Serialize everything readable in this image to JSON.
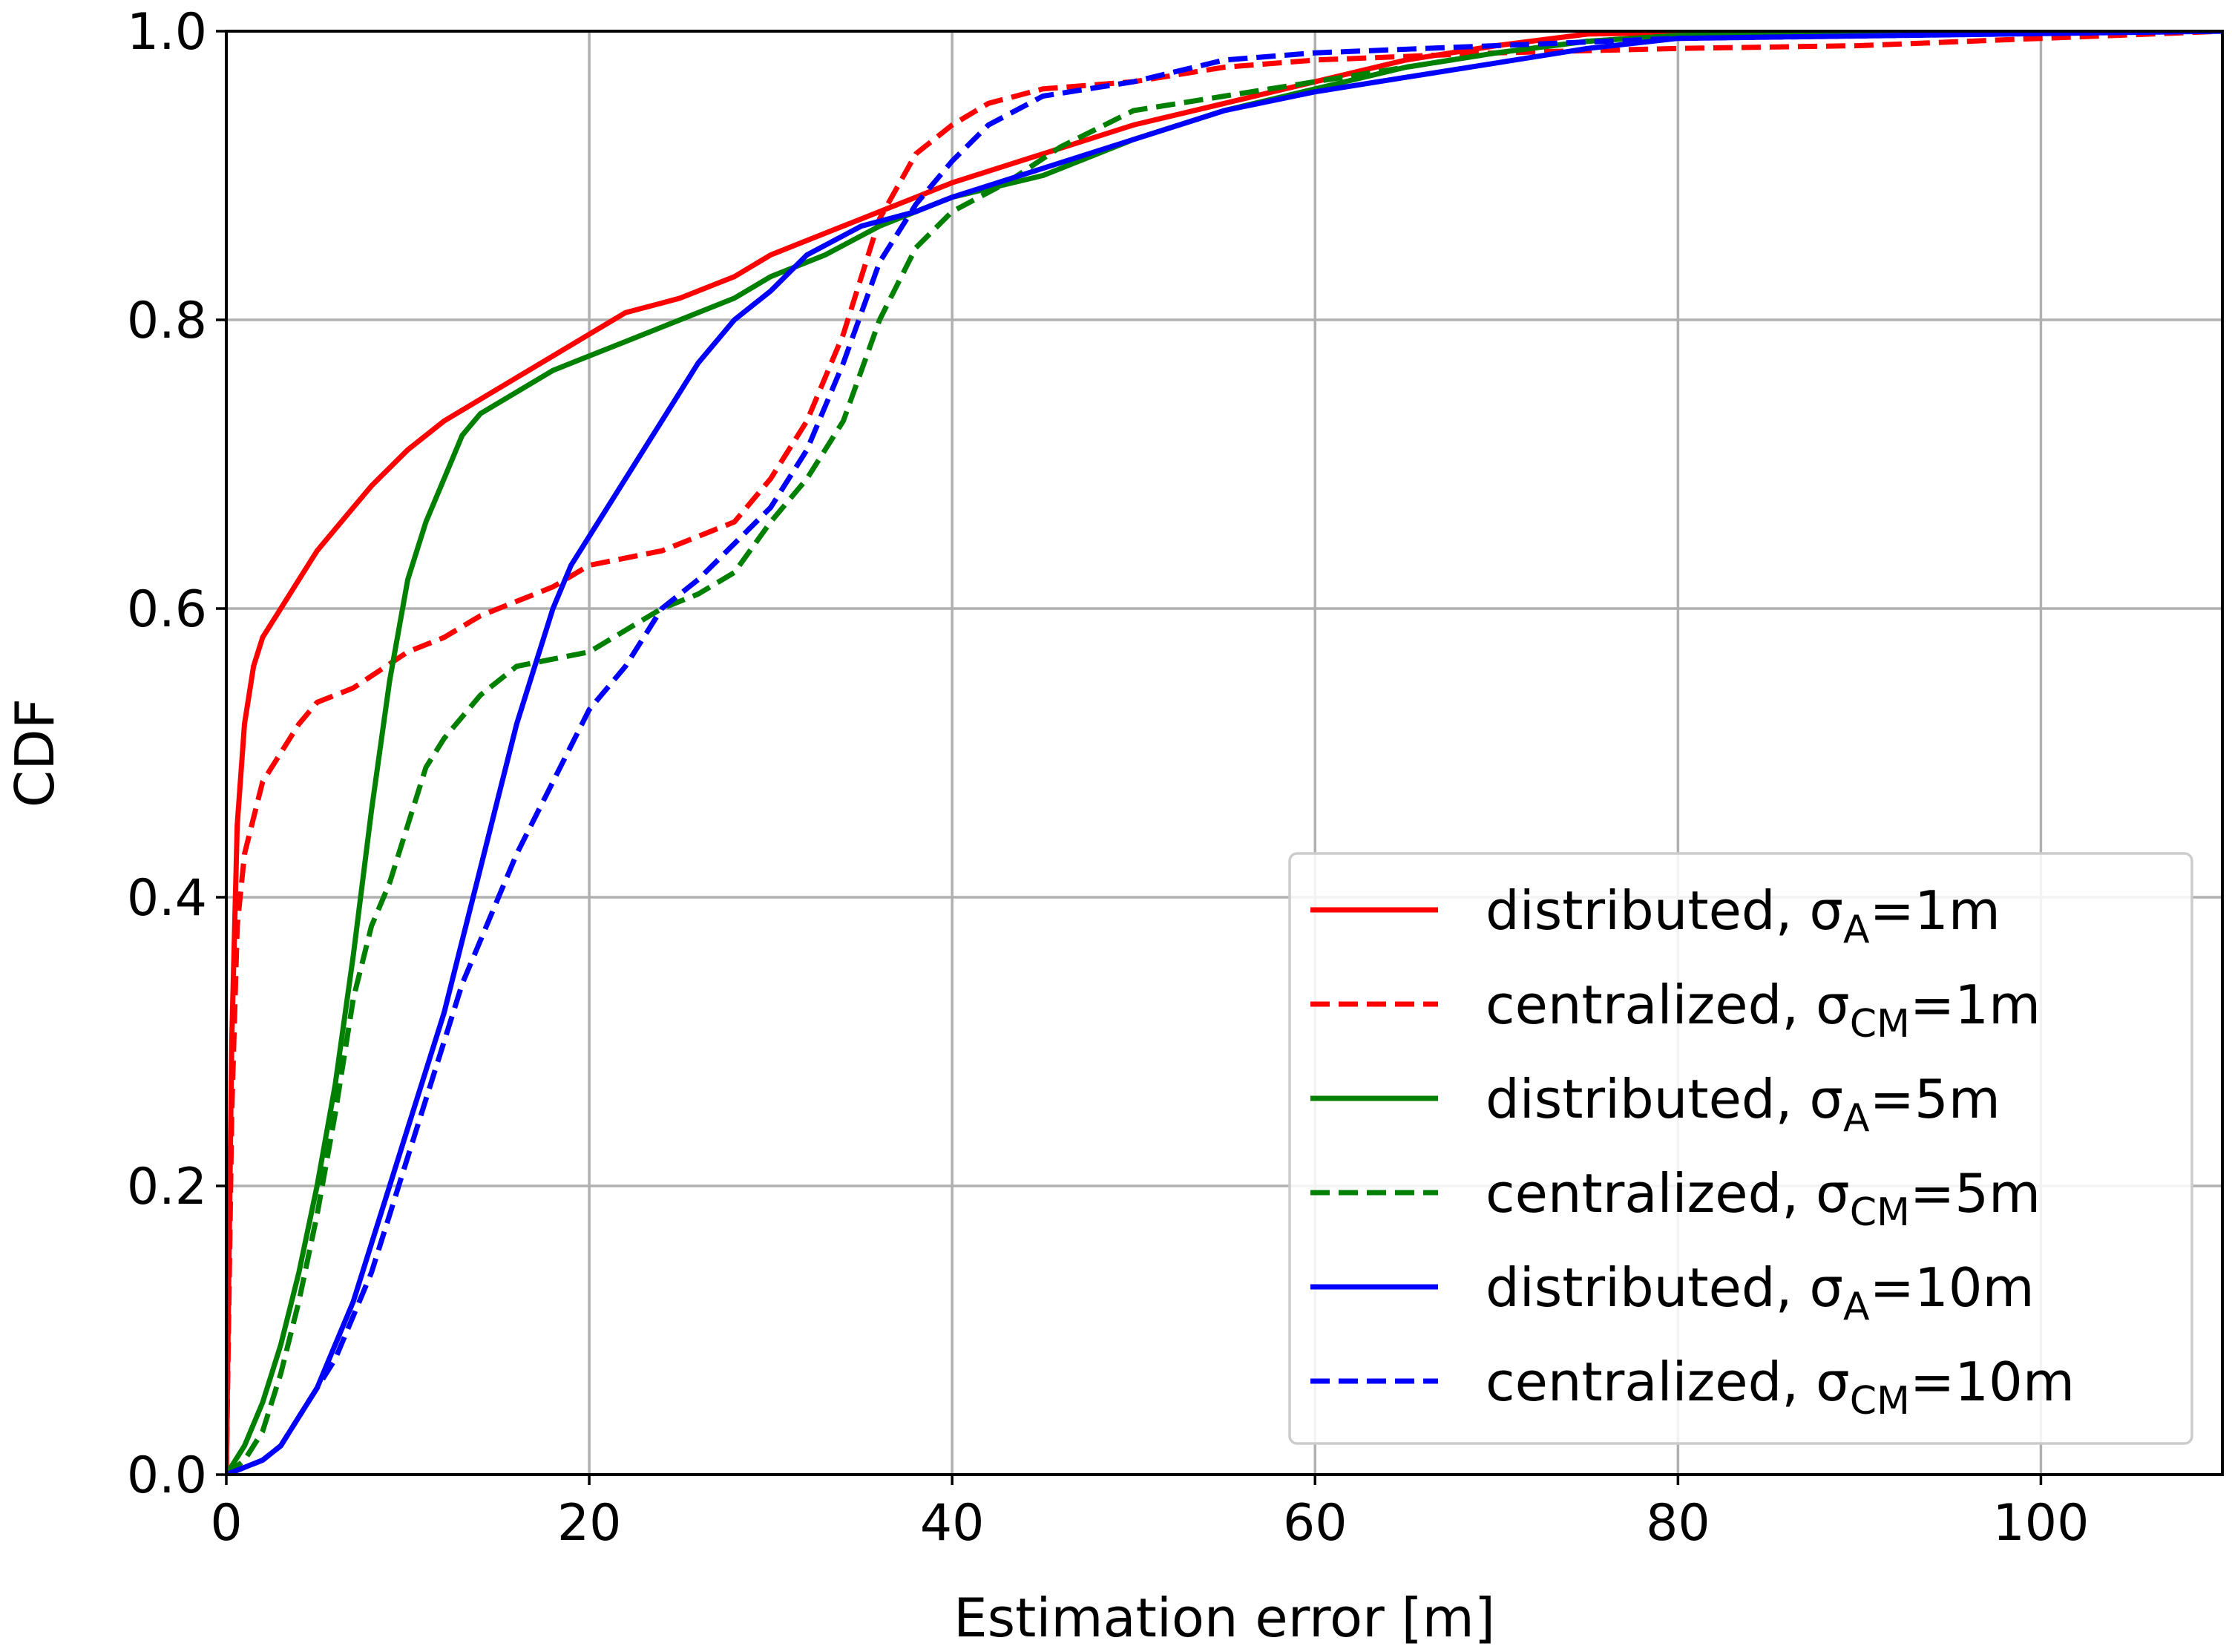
{
  "chart_data": {
    "type": "line",
    "title": "",
    "xlabel": "Estimation error [m]",
    "ylabel": "CDF",
    "xlim": [
      0,
      110
    ],
    "ylim": [
      0,
      1.0
    ],
    "xticks": [
      0,
      20,
      40,
      60,
      80,
      100
    ],
    "yticks": [
      0.0,
      0.2,
      0.4,
      0.6,
      0.8,
      1.0
    ],
    "xtick_labels": [
      "0",
      "20",
      "40",
      "60",
      "80",
      "100"
    ],
    "ytick_labels": [
      "0.0",
      "0.2",
      "0.4",
      "0.6",
      "0.8",
      "1.0"
    ],
    "grid": true,
    "legend_position": "lower-right",
    "series": [
      {
        "name": "distributed, σA=1m",
        "label_main": "distributed, σ",
        "label_sub": "A",
        "label_tail": "=1m",
        "color": "#ff0000",
        "dash": "solid",
        "points": [
          [
            0,
            0
          ],
          [
            0.3,
            0.3
          ],
          [
            0.6,
            0.45
          ],
          [
            1,
            0.52
          ],
          [
            1.5,
            0.56
          ],
          [
            2,
            0.58
          ],
          [
            3,
            0.6
          ],
          [
            4,
            0.62
          ],
          [
            5,
            0.64
          ],
          [
            6,
            0.655
          ],
          [
            7,
            0.67
          ],
          [
            8,
            0.685
          ],
          [
            10,
            0.71
          ],
          [
            12,
            0.73
          ],
          [
            14,
            0.745
          ],
          [
            16,
            0.76
          ],
          [
            18,
            0.775
          ],
          [
            20,
            0.79
          ],
          [
            22,
            0.805
          ],
          [
            25,
            0.815
          ],
          [
            28,
            0.83
          ],
          [
            30,
            0.845
          ],
          [
            33,
            0.86
          ],
          [
            36,
            0.875
          ],
          [
            38,
            0.885
          ],
          [
            40,
            0.895
          ],
          [
            45,
            0.915
          ],
          [
            50,
            0.935
          ],
          [
            55,
            0.95
          ],
          [
            60,
            0.965
          ],
          [
            65,
            0.98
          ],
          [
            70,
            0.99
          ],
          [
            75,
            0.998
          ],
          [
            80,
            0.999
          ],
          [
            110,
            1.0
          ]
        ]
      },
      {
        "name": "centralized, σCM=1m",
        "label_main": "centralized, σ",
        "label_sub": "CM",
        "label_tail": "=1m",
        "color": "#ff0000",
        "dash": "dashed",
        "points": [
          [
            0,
            0
          ],
          [
            0.3,
            0.25
          ],
          [
            0.6,
            0.38
          ],
          [
            1,
            0.43
          ],
          [
            2,
            0.48
          ],
          [
            3,
            0.5
          ],
          [
            4,
            0.52
          ],
          [
            5,
            0.535
          ],
          [
            7,
            0.545
          ],
          [
            10,
            0.57
          ],
          [
            12,
            0.58
          ],
          [
            14,
            0.595
          ],
          [
            16,
            0.605
          ],
          [
            18,
            0.615
          ],
          [
            20,
            0.63
          ],
          [
            22,
            0.635
          ],
          [
            24,
            0.64
          ],
          [
            26,
            0.65
          ],
          [
            28,
            0.66
          ],
          [
            30,
            0.69
          ],
          [
            32,
            0.73
          ],
          [
            34,
            0.79
          ],
          [
            36,
            0.87
          ],
          [
            38,
            0.915
          ],
          [
            40,
            0.935
          ],
          [
            42,
            0.95
          ],
          [
            45,
            0.96
          ],
          [
            50,
            0.965
          ],
          [
            55,
            0.975
          ],
          [
            60,
            0.98
          ],
          [
            70,
            0.985
          ],
          [
            80,
            0.988
          ],
          [
            90,
            0.99
          ],
          [
            100,
            0.995
          ],
          [
            110,
            1.0
          ]
        ]
      },
      {
        "name": "distributed, σA=5m",
        "label_main": "distributed, σ",
        "label_sub": "A",
        "label_tail": "=5m",
        "color": "#008000",
        "dash": "solid",
        "points": [
          [
            0,
            0
          ],
          [
            1,
            0.02
          ],
          [
            2,
            0.05
          ],
          [
            3,
            0.09
          ],
          [
            4,
            0.14
          ],
          [
            5,
            0.2
          ],
          [
            6,
            0.27
          ],
          [
            7,
            0.36
          ],
          [
            8,
            0.46
          ],
          [
            9,
            0.55
          ],
          [
            10,
            0.62
          ],
          [
            11,
            0.66
          ],
          [
            12,
            0.69
          ],
          [
            13,
            0.72
          ],
          [
            14,
            0.735
          ],
          [
            16,
            0.75
          ],
          [
            18,
            0.765
          ],
          [
            20,
            0.775
          ],
          [
            22,
            0.785
          ],
          [
            25,
            0.8
          ],
          [
            28,
            0.815
          ],
          [
            30,
            0.83
          ],
          [
            33,
            0.845
          ],
          [
            36,
            0.865
          ],
          [
            40,
            0.885
          ],
          [
            45,
            0.9
          ],
          [
            50,
            0.925
          ],
          [
            55,
            0.945
          ],
          [
            60,
            0.96
          ],
          [
            65,
            0.975
          ],
          [
            70,
            0.985
          ],
          [
            75,
            0.993
          ],
          [
            80,
            0.997
          ],
          [
            110,
            1.0
          ]
        ]
      },
      {
        "name": "centralized, σCM=5m",
        "label_main": "centralized, σ",
        "label_sub": "CM",
        "label_tail": "=5m",
        "color": "#008000",
        "dash": "dashed",
        "points": [
          [
            0,
            0
          ],
          [
            1,
            0.01
          ],
          [
            2,
            0.03
          ],
          [
            3,
            0.07
          ],
          [
            4,
            0.12
          ],
          [
            5,
            0.18
          ],
          [
            6,
            0.25
          ],
          [
            7,
            0.33
          ],
          [
            8,
            0.38
          ],
          [
            9,
            0.41
          ],
          [
            10,
            0.45
          ],
          [
            11,
            0.49
          ],
          [
            12,
            0.51
          ],
          [
            13,
            0.525
          ],
          [
            14,
            0.54
          ],
          [
            16,
            0.56
          ],
          [
            18,
            0.565
          ],
          [
            20,
            0.57
          ],
          [
            22,
            0.585
          ],
          [
            24,
            0.6
          ],
          [
            26,
            0.61
          ],
          [
            28,
            0.625
          ],
          [
            30,
            0.66
          ],
          [
            32,
            0.69
          ],
          [
            34,
            0.73
          ],
          [
            36,
            0.8
          ],
          [
            38,
            0.85
          ],
          [
            40,
            0.875
          ],
          [
            43,
            0.895
          ],
          [
            46,
            0.92
          ],
          [
            50,
            0.945
          ],
          [
            55,
            0.955
          ],
          [
            60,
            0.965
          ],
          [
            65,
            0.975
          ],
          [
            70,
            0.985
          ],
          [
            75,
            0.993
          ],
          [
            80,
            0.997
          ],
          [
            110,
            1.0
          ]
        ]
      },
      {
        "name": "distributed, σA=10m",
        "label_main": "distributed, σ",
        "label_sub": "A",
        "label_tail": "=10m",
        "color": "#0000ff",
        "dash": "solid",
        "points": [
          [
            0,
            0
          ],
          [
            1,
            0.005
          ],
          [
            2,
            0.01
          ],
          [
            3,
            0.02
          ],
          [
            4,
            0.04
          ],
          [
            5,
            0.06
          ],
          [
            6,
            0.09
          ],
          [
            7,
            0.12
          ],
          [
            8,
            0.16
          ],
          [
            9,
            0.2
          ],
          [
            10,
            0.24
          ],
          [
            11,
            0.28
          ],
          [
            12,
            0.32
          ],
          [
            13,
            0.37
          ],
          [
            14,
            0.42
          ],
          [
            15,
            0.47
          ],
          [
            16,
            0.52
          ],
          [
            17,
            0.56
          ],
          [
            18,
            0.6
          ],
          [
            19,
            0.63
          ],
          [
            20,
            0.65
          ],
          [
            22,
            0.69
          ],
          [
            24,
            0.73
          ],
          [
            26,
            0.77
          ],
          [
            28,
            0.8
          ],
          [
            30,
            0.82
          ],
          [
            32,
            0.845
          ],
          [
            35,
            0.865
          ],
          [
            38,
            0.875
          ],
          [
            40,
            0.885
          ],
          [
            45,
            0.905
          ],
          [
            50,
            0.925
          ],
          [
            55,
            0.945
          ],
          [
            60,
            0.958
          ],
          [
            65,
            0.968
          ],
          [
            70,
            0.978
          ],
          [
            75,
            0.988
          ],
          [
            80,
            0.995
          ],
          [
            110,
            1.0
          ]
        ]
      },
      {
        "name": "centralized, σCM=10m",
        "label_main": "centralized, σ",
        "label_sub": "CM",
        "label_tail": "=10m",
        "color": "#0000ff",
        "dash": "dashed",
        "points": [
          [
            0,
            0
          ],
          [
            1,
            0.005
          ],
          [
            2,
            0.01
          ],
          [
            3,
            0.02
          ],
          [
            4,
            0.04
          ],
          [
            5,
            0.06
          ],
          [
            6,
            0.08
          ],
          [
            7,
            0.11
          ],
          [
            8,
            0.14
          ],
          [
            9,
            0.18
          ],
          [
            10,
            0.22
          ],
          [
            11,
            0.26
          ],
          [
            12,
            0.3
          ],
          [
            13,
            0.34
          ],
          [
            14,
            0.37
          ],
          [
            15,
            0.4
          ],
          [
            16,
            0.43
          ],
          [
            18,
            0.48
          ],
          [
            20,
            0.53
          ],
          [
            22,
            0.56
          ],
          [
            24,
            0.6
          ],
          [
            26,
            0.62
          ],
          [
            28,
            0.645
          ],
          [
            30,
            0.67
          ],
          [
            32,
            0.71
          ],
          [
            34,
            0.77
          ],
          [
            36,
            0.84
          ],
          [
            38,
            0.88
          ],
          [
            40,
            0.91
          ],
          [
            42,
            0.935
          ],
          [
            45,
            0.955
          ],
          [
            50,
            0.965
          ],
          [
            55,
            0.98
          ],
          [
            60,
            0.985
          ],
          [
            70,
            0.99
          ],
          [
            80,
            0.995
          ],
          [
            110,
            1.0
          ]
        ]
      }
    ]
  }
}
